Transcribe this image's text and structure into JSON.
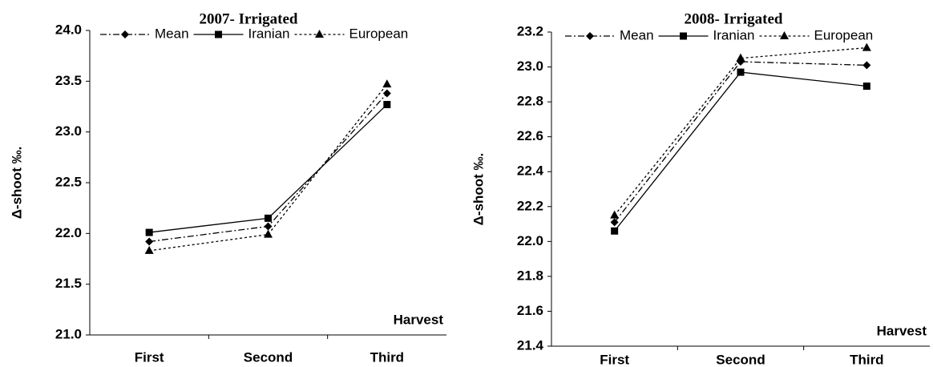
{
  "chart_data": [
    {
      "type": "line",
      "title": "2007- Irrigated",
      "y_label": "Δ-shoot ‰.",
      "x_annotation": "Harvest",
      "categories": [
        "First",
        "Second",
        "Third"
      ],
      "series": [
        {
          "name": "Mean",
          "color": "#000000",
          "linestyle": "dashdot",
          "marker": "diamond",
          "values": [
            21.92,
            22.07,
            23.38
          ]
        },
        {
          "name": "Iranian",
          "color": "#000000",
          "linestyle": "solid",
          "marker": "square",
          "values": [
            22.01,
            22.15,
            23.27
          ]
        },
        {
          "name": "European",
          "color": "#000000",
          "linestyle": "dotted",
          "marker": "triangle",
          "values": [
            21.83,
            21.99,
            23.47
          ]
        }
      ],
      "ylim": [
        21,
        24
      ],
      "yticks": [
        {
          "value": 21,
          "label": "21.0"
        },
        21.5,
        {
          "value": 22,
          "label": "22.0"
        },
        22.5,
        {
          "value": 23,
          "label": "23.0"
        },
        23.5,
        {
          "value": 24,
          "label": "24.0"
        }
      ],
      "legend": "top"
    },
    {
      "type": "line",
      "title": "2008- Irrigated",
      "y_label": "Δ-shoot ‰.",
      "x_annotation": "Harvest",
      "categories": [
        "First",
        "Second",
        "Third"
      ],
      "series": [
        {
          "name": "Mean",
          "color": "#000000",
          "linestyle": "dashdot",
          "marker": "diamond",
          "values": [
            22.11,
            23.03,
            23.01
          ]
        },
        {
          "name": "Iranian",
          "color": "#000000",
          "linestyle": "solid",
          "marker": "square",
          "values": [
            22.06,
            22.97,
            22.89
          ]
        },
        {
          "name": "European",
          "color": "#000000",
          "linestyle": "dotted",
          "marker": "triangle",
          "values": [
            22.15,
            23.05,
            23.11
          ]
        }
      ],
      "ylim": [
        21.4,
        23.2
      ],
      "yticks": [
        21.4,
        21.6,
        21.8,
        {
          "value": 22,
          "label": "22.0"
        },
        22.2,
        22.4,
        22.6,
        22.8,
        {
          "value": 23,
          "label": "23.0"
        },
        23.2
      ],
      "legend": "top"
    }
  ]
}
